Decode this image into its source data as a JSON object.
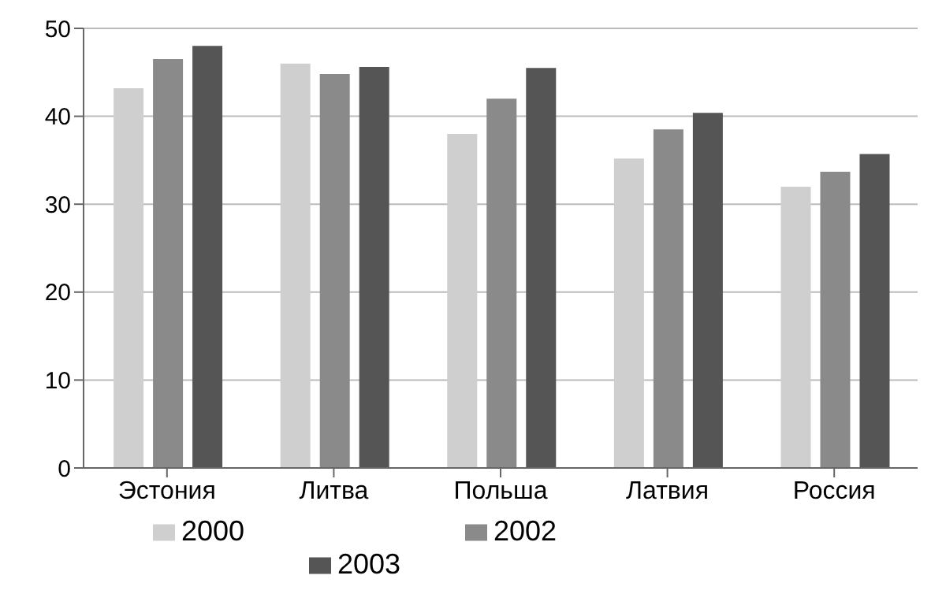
{
  "chart_data": {
    "type": "bar",
    "categories": [
      "Эстония",
      "Литва",
      "Польша",
      "Латвия",
      "Россия"
    ],
    "series": [
      {
        "name": "2000",
        "color": "#cfcfcf",
        "values": [
          43.2,
          46,
          38,
          35.2,
          32
        ]
      },
      {
        "name": "2002",
        "color": "#8a8a8a",
        "values": [
          46.5,
          44.8,
          42,
          38.5,
          33.7
        ]
      },
      {
        "name": "2003",
        "color": "#555555",
        "values": [
          48,
          45.6,
          45.5,
          40.4,
          35.7
        ]
      }
    ],
    "ylim": [
      0,
      50
    ],
    "yticks": [
      0,
      10,
      20,
      30,
      40,
      50
    ],
    "grid": "y",
    "legend": "bottom"
  }
}
